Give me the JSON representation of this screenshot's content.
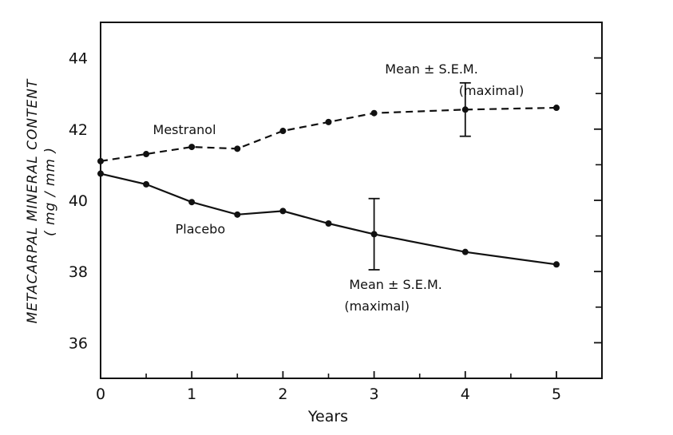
{
  "chart_data": {
    "type": "line",
    "title": "",
    "xlabel": "Years",
    "ylabel": "METACARPAL MINERAL CONTENT",
    "ylabel_units": "( mg / mm )",
    "xlim": [
      0,
      5.5
    ],
    "ylim": [
      35,
      45
    ],
    "xticks": [
      0,
      1,
      2,
      3,
      4,
      5
    ],
    "xtick_labels": [
      "0",
      "1",
      "2",
      "3",
      "4",
      "5"
    ],
    "yticks": [
      36,
      38,
      40,
      42,
      44
    ],
    "ytick_labels": [
      "36",
      "38",
      "40",
      "42",
      "44"
    ],
    "y_minor_ticks": [
      37,
      39,
      41,
      43
    ],
    "x_minor_ticks": [
      0.5,
      1.5,
      2.5,
      3.5,
      4.5
    ],
    "grid": false,
    "series": [
      {
        "name": "Mestranol",
        "line_style": "dashed",
        "x": [
          0,
          0.5,
          1,
          1.5,
          2,
          2.5,
          3,
          4,
          5
        ],
        "values": [
          41.1,
          41.3,
          41.5,
          41.45,
          41.95,
          42.2,
          42.45,
          42.55,
          42.6
        ]
      },
      {
        "name": "Placebo",
        "line_style": "solid",
        "x": [
          0,
          0.5,
          1,
          1.5,
          2,
          2.5,
          3,
          4,
          5
        ],
        "values": [
          40.75,
          40.45,
          39.95,
          39.6,
          39.7,
          39.35,
          39.05,
          38.55,
          38.2
        ]
      }
    ],
    "error_bars": [
      {
        "series": "Mestranol",
        "x": 4,
        "y": 42.55,
        "low": 41.8,
        "high": 43.3
      },
      {
        "series": "Placebo",
        "x": 3,
        "y": 39.05,
        "low": 38.05,
        "high": 40.05
      }
    ],
    "annotations": [
      {
        "text": "Mestranol",
        "x": 0.6,
        "y": 42.0
      },
      {
        "text": "Placebo",
        "x": 0.82,
        "y": 39.2
      },
      {
        "line1": "Mean ± S.E.M.",
        "line2": "(maximal)",
        "x": 4.0,
        "y": 43.7
      },
      {
        "line1": "Mean ± S.E.M.",
        "line2": "(maximal)",
        "x": 2.7,
        "y": 37.65
      }
    ]
  }
}
